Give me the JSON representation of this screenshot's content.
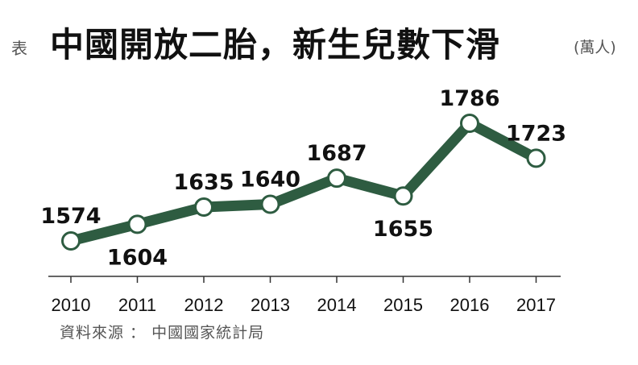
{
  "header": {
    "prefix": "表",
    "title": "中國開放二胎，新生兒數下滑",
    "unit": "(萬人)"
  },
  "source": "資料來源 ： 中國國家統計局",
  "colors": {
    "line": "#2e5c41",
    "marker_fill": "#ffffff",
    "text": "#111111",
    "muted": "#555555"
  },
  "chart_data": {
    "type": "line",
    "title": "中國開放二胎，新生兒數下滑",
    "ylabel": "(萬人)",
    "xlabel": "",
    "categories": [
      "2010",
      "2011",
      "2012",
      "2013",
      "2014",
      "2015",
      "2016",
      "2017"
    ],
    "values": [
      1574,
      1604,
      1635,
      1640,
      1687,
      1655,
      1786,
      1723
    ],
    "label_position": [
      "above",
      "below",
      "above",
      "above",
      "above",
      "below",
      "above",
      "above"
    ],
    "grid": false,
    "legend": "none"
  }
}
